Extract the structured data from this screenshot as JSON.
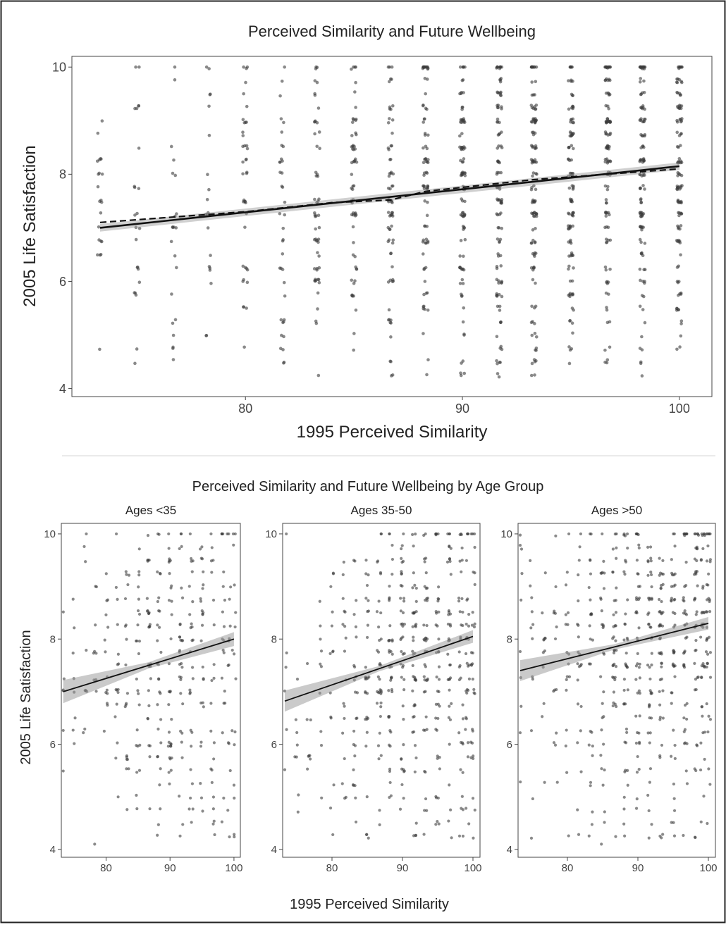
{
  "chart_data": [
    {
      "type": "scatter",
      "title": "Perceived Similarity and Future Wellbeing",
      "xlabel": "1995 Perceived Similarity",
      "ylabel": "2005 Life Satisfaction",
      "xlim": [
        72,
        101.5
      ],
      "ylim": [
        3.85,
        10.2
      ],
      "xticks": [
        80,
        90,
        100
      ],
      "yticks": [
        4,
        6,
        8,
        10
      ],
      "grid": false,
      "x_levels": [
        73.3,
        75,
        76.7,
        78.3,
        80,
        81.7,
        83.3,
        85,
        86.7,
        88.3,
        90,
        91.7,
        93.3,
        95,
        96.7,
        98.3,
        100
      ],
      "point_counts": [
        22,
        24,
        22,
        20,
        40,
        38,
        55,
        60,
        70,
        80,
        95,
        110,
        120,
        110,
        110,
        115,
        110
      ],
      "trend_lines": [
        {
          "style": "solid",
          "x": [
            73.3,
            100
          ],
          "y": [
            7.0,
            8.15
          ],
          "ci": 0.07
        },
        {
          "style": "dashed",
          "x": [
            73.3,
            80,
            84,
            86.7,
            88.3,
            93.3,
            100
          ],
          "y": [
            7.1,
            7.3,
            7.47,
            7.52,
            7.68,
            7.9,
            8.1
          ]
        }
      ]
    },
    {
      "type": "scatter",
      "title": "Perceived Similarity and Future Wellbeing by Age Group",
      "xlabel": "1995 Perceived Similarity",
      "ylabel": "2005 Life Satisfaction",
      "xlim": [
        73,
        101
      ],
      "ylim": [
        3.85,
        10.2
      ],
      "xticks": [
        80,
        90,
        100
      ],
      "yticks": [
        4,
        6,
        8,
        10
      ],
      "grid": false,
      "facets": [
        {
          "name": "Ages <35",
          "fit": {
            "x": [
              73.3,
              100
            ],
            "y": [
              7.0,
              8.0
            ]
          },
          "ci_end": 0.22,
          "ci_mid": 0.06,
          "point_counts": [
            6,
            8,
            9,
            10,
            14,
            16,
            20,
            24,
            28,
            30,
            32,
            30,
            28,
            26,
            22,
            20,
            16,
            14
          ]
        },
        {
          "name": "Ages 35-50",
          "fit": {
            "x": [
              73.3,
              100
            ],
            "y": [
              6.82,
              8.05
            ]
          },
          "ci_end": 0.2,
          "ci_mid": 0.05,
          "point_counts": [
            6,
            8,
            8,
            10,
            14,
            18,
            24,
            30,
            36,
            40,
            44,
            44,
            42,
            40,
            38,
            34,
            30,
            28
          ]
        },
        {
          "name": "Ages >50",
          "fit": {
            "x": [
              73.3,
              100
            ],
            "y": [
              7.4,
              8.3
            ]
          },
          "ci_end": 0.2,
          "ci_mid": 0.05,
          "point_counts": [
            10,
            12,
            12,
            14,
            18,
            22,
            26,
            30,
            36,
            40,
            44,
            46,
            46,
            44,
            42,
            40,
            38,
            36
          ]
        }
      ]
    }
  ]
}
